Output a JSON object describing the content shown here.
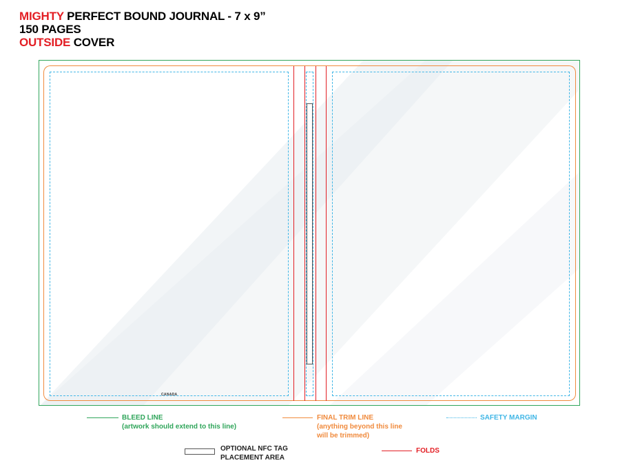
{
  "header": {
    "line1_accent": "MIGHTY",
    "line1_rest": " PERFECT BOUND JOURNAL - 7 x 9”",
    "line2": "150 PAGES",
    "line3_accent": "OUTSIDE",
    "line3_rest": " COVER"
  },
  "template": {
    "imprint_text": "CANADA"
  },
  "legend": {
    "bleed": {
      "title": "BLEED LINE",
      "note": "(artwork should extend to this line)"
    },
    "trim": {
      "title": "FINAL TRIM LINE",
      "note1": "(anything beyond this line",
      "note2": "will be trimmed)"
    },
    "safety": {
      "title": "SAFETY MARGIN"
    },
    "nfc": {
      "title1": "OPTIONAL NFC TAG",
      "title2": "PLACEMENT AREA"
    },
    "folds": {
      "title": "FOLDS"
    }
  },
  "colors": {
    "accent_red": "#e31e24",
    "bleed_green": "#2fa55a",
    "trim_orange": "#f08a3c",
    "safety_blue": "#3fb6e6"
  }
}
